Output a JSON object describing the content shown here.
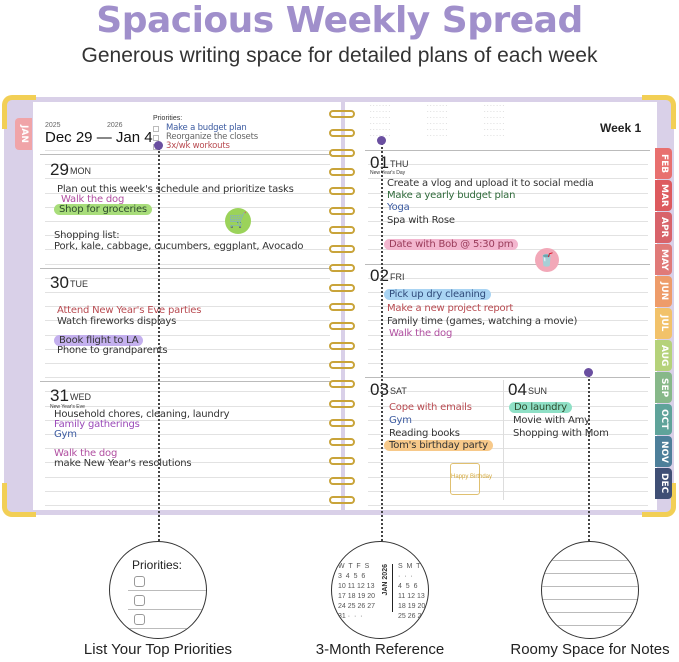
{
  "header": {
    "title": "Spacious Weekly Spread",
    "subtitle": "Generous writing space for detailed plans of each week"
  },
  "colors": {
    "title": "#a08fcb",
    "cover": "#d9d0e8",
    "corner": "#f2cf55",
    "ring": "#c9a43a",
    "marker_dot": "#6a4fa0"
  },
  "left_page": {
    "year_start": "2025",
    "year_end": "2026",
    "date_range": "Dec 29 — Jan 4",
    "priorities": {
      "label": "Priorities:",
      "items": [
        "Make a budget plan",
        "Reorganize the closets",
        "3x/wk workouts"
      ]
    },
    "days": [
      {
        "num": "29",
        "name": "MON",
        "entries": [
          "Plan out this week's schedule and prioritize tasks",
          "Walk the dog",
          "Shop for groceries",
          "Shopping list:",
          "Pork, kale, cabbage, cucumbers, eggplant, Avocado"
        ]
      },
      {
        "num": "30",
        "name": "TUE",
        "entries": [
          "Attend New Year's Eve parties",
          "Watch fireworks displays",
          "Book flight to LA",
          "Phone to grandparents"
        ]
      },
      {
        "num": "31",
        "name": "WED",
        "holiday": "New Year's Eve",
        "entries": [
          "Household chores, cleaning, laundry",
          "Family gatherings",
          "Gym",
          "Walk the dog",
          "make New Year's resolutions"
        ]
      }
    ],
    "icons": [
      "shopping-cart-icon"
    ]
  },
  "right_page": {
    "week": "Week 1",
    "days": [
      {
        "num": "01",
        "name": "THU",
        "holiday": "New Year's Day",
        "entries": [
          "Create a vlog and upload it to social media",
          "Make a yearly budget plan",
          "Yoga",
          "Spa with Rose",
          "Date with Bob @ 5:30 pm"
        ]
      },
      {
        "num": "02",
        "name": "FRI",
        "entries": [
          "Pick up dry cleaning",
          "Make a new project report",
          "Family time (games, watching a movie)",
          "Walk the dog"
        ]
      },
      {
        "num": "03",
        "name": "SAT",
        "entries": [
          "Cope with emails",
          "Gym",
          "Reading books",
          "Tom's birthday party"
        ]
      },
      {
        "num": "04",
        "name": "SUN",
        "entries": [
          "Do laundry",
          "Movie with Amy",
          "Shopping with Mom"
        ]
      }
    ],
    "icons": [
      "drink-icon",
      "birthday-cake-icon"
    ]
  },
  "tabs": {
    "left": "JAN",
    "right": [
      "FEB",
      "MAR",
      "APR",
      "MAY",
      "JUN",
      "JUL",
      "AUG",
      "SEP",
      "OCT",
      "NOV",
      "DEC"
    ],
    "colors": [
      "#e8706f",
      "#dd5a5e",
      "#d8636a",
      "#e07a78",
      "#ee9c6a",
      "#f2c26a",
      "#b5d27a",
      "#87b889",
      "#5fa39a",
      "#4d7f9a",
      "#3f4f75"
    ],
    "left_color": "#f0a4a8"
  },
  "features": [
    {
      "label": "List Your Top Priorities",
      "zoom_title": "Priorities:"
    },
    {
      "label": "3-Month Reference",
      "cal_month": "JAN 2026",
      "cal_left": [
        "W  T  F  S",
        "3  4  5  6",
        "10 11 12 13",
        "17 18 19 20",
        "24 25 26 27",
        "31 ·  ·  ·"
      ],
      "cal_right": [
        "S  M  T",
        "·  ·  ·",
        "4  5  6",
        "11 12 13",
        "18 19 20",
        "25 26 27"
      ]
    },
    {
      "label": "Roomy Space for Notes"
    }
  ]
}
